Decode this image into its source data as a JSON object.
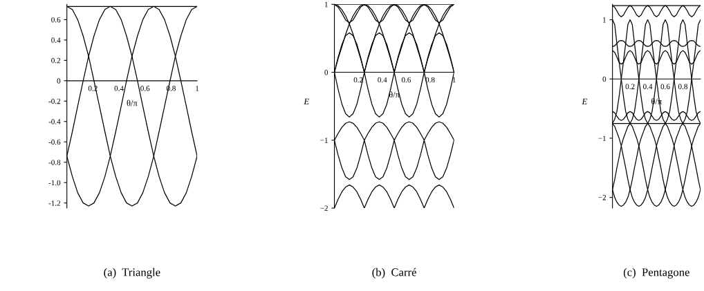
{
  "chart_data": [
    {
      "type": "line",
      "title": "(a)  Triangle",
      "xlabel": "θ/π",
      "xlim": [
        0,
        1
      ],
      "ylim": [
        -1.25,
        0.75
      ],
      "xticks": [
        0.2,
        0.4,
        0.6,
        0.8,
        1
      ],
      "yticks": [
        0.6,
        0.4,
        0.2,
        0,
        -0.2,
        -0.4,
        -0.6,
        -0.8,
        {
          "value": -1.0,
          "label": "-1.0"
        },
        -1.2
      ],
      "x": [
        0,
        0.042,
        0.083,
        0.125,
        0.167,
        0.208,
        0.25,
        0.292,
        0.333,
        0.375,
        0.417,
        0.458,
        0.5,
        0.542,
        0.583,
        0.625,
        0.667,
        0.708,
        0.75,
        0.792,
        0.833,
        0.875,
        0.917,
        0.958,
        1
      ],
      "series": [
        {
          "color": "#000000",
          "values": [
            0.73,
            0.7,
            0.6,
            0.44,
            0.24,
            0.0,
            -0.25,
            -0.5,
            -0.74,
            -0.94,
            -1.1,
            -1.2,
            -1.23,
            -1.2,
            -1.1,
            -0.94,
            -0.74,
            -0.5,
            -0.25,
            0.0,
            0.24,
            0.44,
            0.6,
            0.7,
            0.73
          ]
        },
        {
          "color": "#000000",
          "values": [
            -0.74,
            -0.5,
            -0.25,
            0.0,
            0.24,
            0.44,
            0.6,
            0.7,
            0.73,
            0.7,
            0.6,
            0.44,
            0.24,
            0.0,
            -0.25,
            -0.5,
            -0.74,
            -0.94,
            -1.1,
            -1.2,
            -1.23,
            -1.2,
            -1.1,
            -0.94,
            -0.74
          ]
        },
        {
          "color": "#000000",
          "values": [
            -0.74,
            -0.94,
            -1.1,
            -1.2,
            -1.23,
            -1.2,
            -1.1,
            -0.94,
            -0.74,
            -0.5,
            -0.25,
            0.0,
            0.24,
            0.44,
            0.6,
            0.7,
            0.73,
            0.7,
            0.6,
            0.44,
            0.24,
            0.0,
            -0.25,
            -0.5,
            -0.74
          ]
        },
        {
          "color": "#000000",
          "values": [
            0.73,
            0.73,
            0.73,
            0.73,
            0.73,
            0.73,
            0.73,
            0.73,
            0.73,
            0.73,
            0.73,
            0.73,
            0.73,
            0.73,
            0.73,
            0.73,
            0.73,
            0.73,
            0.73,
            0.73,
            0.73,
            0.73,
            0.73,
            0.73,
            0.73
          ]
        }
      ]
    },
    {
      "type": "line",
      "title": "(b)  Carré",
      "xlabel": "θ/π",
      "ylabel": "E",
      "xlim": [
        0,
        1
      ],
      "ylim": [
        -2,
        1
      ],
      "xticks": [
        0.2,
        0.4,
        0.6,
        0.8,
        1
      ],
      "yticks": [
        {
          "value": 1,
          "label": "1"
        },
        {
          "value": 0,
          "label": "0"
        },
        {
          "value": -1,
          "label": "−1"
        },
        {
          "value": -2,
          "label": "−2"
        }
      ],
      "x": [
        0,
        0.031,
        0.063,
        0.094,
        0.125,
        0.156,
        0.188,
        0.219,
        0.25,
        0.281,
        0.313,
        0.344,
        0.375,
        0.406,
        0.438,
        0.469,
        0.5,
        0.531,
        0.563,
        0.594,
        0.625,
        0.656,
        0.688,
        0.719,
        0.75,
        0.781,
        0.813,
        0.844,
        0.875,
        0.906,
        0.938,
        0.969,
        1
      ],
      "series": [
        {
          "color": "#000000",
          "values": [
            1.0,
            0.96,
            0.87,
            0.77,
            0.73,
            0.77,
            0.87,
            0.96,
            1.0,
            0.96,
            0.87,
            0.77,
            0.73,
            0.77,
            0.87,
            0.96,
            1.0,
            0.96,
            0.87,
            0.77,
            0.73,
            0.77,
            0.87,
            0.96,
            1.0,
            0.96,
            0.87,
            0.77,
            0.73,
            0.77,
            0.87,
            0.96,
            1.0
          ]
        },
        {
          "color": "#000000",
          "values": [
            1,
            0.98,
            0.92,
            0.83,
            0.71,
            0.56,
            0.38,
            0.2,
            0,
            0.2,
            0.38,
            0.56,
            0.71,
            0.83,
            0.92,
            0.98,
            1,
            0.98,
            0.92,
            0.83,
            0.71,
            0.56,
            0.38,
            0.2,
            0,
            0.2,
            0.38,
            0.56,
            0.71,
            0.83,
            0.92,
            0.98,
            1
          ]
        },
        {
          "color": "#000000",
          "values": [
            0,
            0.2,
            0.38,
            0.56,
            0.71,
            0.83,
            0.92,
            0.98,
            1,
            0.98,
            0.92,
            0.83,
            0.71,
            0.56,
            0.38,
            0.2,
            0,
            0.2,
            0.38,
            0.56,
            0.71,
            0.83,
            0.92,
            0.98,
            1,
            0.98,
            0.92,
            0.83,
            0.71,
            0.56,
            0.38,
            0.2,
            0
          ]
        },
        {
          "color": "#000000",
          "values": [
            0,
            0.22,
            0.41,
            0.54,
            0.58,
            0.54,
            0.41,
            0.22,
            0,
            0.22,
            0.41,
            0.54,
            0.58,
            0.54,
            0.41,
            0.22,
            0,
            0.22,
            0.41,
            0.54,
            0.58,
            0.54,
            0.41,
            0.22,
            0,
            0.22,
            0.41,
            0.54,
            0.58,
            0.54,
            0.41,
            0.22,
            0
          ]
        },
        {
          "color": "#000000",
          "values": [
            0,
            -0.25,
            -0.47,
            -0.61,
            -0.66,
            -0.61,
            -0.47,
            -0.25,
            0,
            -0.25,
            -0.47,
            -0.61,
            -0.66,
            -0.61,
            -0.47,
            -0.25,
            0,
            -0.25,
            -0.47,
            -0.61,
            -0.66,
            -0.61,
            -0.47,
            -0.25,
            0,
            -0.25,
            -0.47,
            -0.61,
            -0.66,
            -0.61,
            -0.47,
            -0.25,
            0
          ]
        },
        {
          "color": "#000000",
          "values": [
            -1.0,
            -0.9,
            -0.81,
            -0.75,
            -0.73,
            -0.75,
            -0.81,
            -0.9,
            -1.0,
            -0.9,
            -0.81,
            -0.75,
            -0.73,
            -0.75,
            -0.81,
            -0.9,
            -1.0,
            -0.9,
            -0.81,
            -0.75,
            -0.73,
            -0.75,
            -0.81,
            -0.9,
            -1.0,
            -0.9,
            -0.81,
            -0.75,
            -0.73,
            -0.75,
            -0.81,
            -0.9,
            -1.0
          ]
        },
        {
          "color": "#000000",
          "values": [
            -1.0,
            -1.22,
            -1.41,
            -1.54,
            -1.58,
            -1.54,
            -1.41,
            -1.22,
            -1.0,
            -1.22,
            -1.41,
            -1.54,
            -1.58,
            -1.54,
            -1.41,
            -1.22,
            -1.0,
            -1.22,
            -1.41,
            -1.54,
            -1.58,
            -1.54,
            -1.41,
            -1.22,
            -1.0,
            -1.22,
            -1.41,
            -1.54,
            -1.58,
            -1.54,
            -1.41,
            -1.22,
            -1.0
          ]
        },
        {
          "color": "#000000",
          "values": [
            -2.0,
            -1.87,
            -1.76,
            -1.69,
            -1.66,
            -1.69,
            -1.76,
            -1.87,
            -2.0,
            -1.87,
            -1.76,
            -1.69,
            -1.66,
            -1.69,
            -1.76,
            -1.87,
            -2.0,
            -1.87,
            -1.76,
            -1.69,
            -1.66,
            -1.69,
            -1.76,
            -1.87,
            -2.0,
            -1.87,
            -1.76,
            -1.69,
            -1.66,
            -1.69,
            -1.76,
            -1.87,
            -2.0
          ]
        },
        {
          "color": "#000000",
          "values": [
            1,
            1,
            1,
            1,
            1,
            1,
            1,
            1,
            1,
            1,
            1,
            1,
            1,
            1,
            1,
            1,
            1,
            1,
            1,
            1,
            1,
            1,
            1,
            1,
            1,
            1,
            1,
            1,
            1,
            1,
            1,
            1,
            1
          ]
        }
      ]
    },
    {
      "type": "line",
      "title": "(c)  Pentagone",
      "xlabel": "θ/π",
      "ylabel": "E",
      "xlim": [
        0,
        1
      ],
      "ylim": [
        -2.18,
        1.26
      ],
      "xticks": [
        0.2,
        0.4,
        0.6,
        0.8
      ],
      "yticks": [
        {
          "value": 1,
          "label": "1"
        },
        {
          "value": 0,
          "label": "0"
        },
        {
          "value": -1,
          "label": "−1"
        },
        {
          "value": -2,
          "label": "−2"
        }
      ],
      "x": [
        0,
        0.025,
        0.05,
        0.075,
        0.1,
        0.125,
        0.15,
        0.175,
        0.2,
        0.225,
        0.25,
        0.275,
        0.3,
        0.325,
        0.35,
        0.375,
        0.4,
        0.425,
        0.45,
        0.475,
        0.5,
        0.525,
        0.55,
        0.575,
        0.6,
        0.625,
        0.65,
        0.675,
        0.7,
        0.725,
        0.75,
        0.775,
        0.8,
        0.825,
        0.85,
        0.875,
        0.9,
        0.925,
        0.95,
        0.975,
        1
      ],
      "series": [
        {
          "color": "#000000",
          "values": [
            1.24,
            1.21,
            1.15,
            1.08,
            1.05,
            1.08,
            1.15,
            1.21,
            1.24,
            1.21,
            1.15,
            1.08,
            1.05,
            1.08,
            1.15,
            1.21,
            1.24,
            1.21,
            1.15,
            1.08,
            1.05,
            1.08,
            1.15,
            1.21,
            1.24,
            1.21,
            1.15,
            1.08,
            1.05,
            1.08,
            1.15,
            1.21,
            1.24,
            1.21,
            1.15,
            1.08,
            1.05,
            1.08,
            1.15,
            1.21,
            1.24
          ]
        },
        {
          "color": "#000000",
          "values": [
            0.55,
            0.56,
            0.6,
            0.64,
            0.65,
            0.64,
            0.6,
            0.56,
            0.55,
            0.56,
            0.6,
            0.64,
            0.65,
            0.64,
            0.6,
            0.56,
            0.55,
            0.56,
            0.6,
            0.64,
            0.65,
            0.64,
            0.6,
            0.56,
            0.55,
            0.56,
            0.6,
            0.64,
            0.65,
            0.64,
            0.6,
            0.56,
            0.55,
            0.56,
            0.6,
            0.64,
            0.65,
            0.64,
            0.6,
            0.56,
            0.55
          ]
        },
        {
          "color": "#000000",
          "values": [
            0.48,
            0.45,
            0.37,
            0.28,
            0.25,
            0.28,
            0.37,
            0.45,
            0.48,
            0.45,
            0.37,
            0.28,
            0.25,
            0.28,
            0.37,
            0.45,
            0.48,
            0.45,
            0.37,
            0.28,
            0.25,
            0.28,
            0.37,
            0.45,
            0.48,
            0.45,
            0.37,
            0.28,
            0.25,
            0.28,
            0.37,
            0.45,
            0.48,
            0.45,
            0.37,
            0.28,
            0.25,
            0.28,
            0.37,
            0.45,
            0.48
          ]
        },
        {
          "color": "#000000",
          "values": [
            -0.55,
            -0.57,
            -0.63,
            -0.68,
            -0.7,
            -0.68,
            -0.63,
            -0.57,
            -0.55,
            -0.57,
            -0.63,
            -0.68,
            -0.7,
            -0.68,
            -0.63,
            -0.57,
            -0.55,
            -0.57,
            -0.63,
            -0.68,
            -0.7,
            -0.68,
            -0.63,
            -0.57,
            -0.55,
            -0.57,
            -0.63,
            -0.68,
            -0.7,
            -0.68,
            -0.63,
            -0.57,
            -0.55,
            -0.57,
            -0.63,
            -0.68,
            -0.7,
            -0.68,
            -0.63,
            -0.57,
            -0.55
          ]
        },
        {
          "color": "#000000",
          "values": [
            1.0,
            0.92,
            0.6,
            0.3,
            0.0,
            -0.3,
            -0.55,
            -0.68,
            -0.75,
            -0.8,
            -0.9,
            -1.0,
            -1.13,
            -1.32,
            -1.5,
            -1.7,
            -1.87,
            -2.0,
            -2.08,
            -2.13,
            -2.15,
            -2.13,
            -2.08,
            -2.0,
            -1.87,
            -1.7,
            -1.5,
            -1.32,
            -1.13,
            -1.0,
            -0.9,
            -0.8,
            -0.75,
            -0.68,
            -0.55,
            -0.3,
            0.0,
            0.3,
            0.6,
            0.92,
            1.0
          ]
        },
        {
          "color": "#000000",
          "values": [
            -0.75,
            -0.68,
            -0.55,
            -0.3,
            0.0,
            0.3,
            0.6,
            0.92,
            1.0,
            0.92,
            0.6,
            0.3,
            0.0,
            -0.3,
            -0.55,
            -0.68,
            -0.75,
            -0.8,
            -0.9,
            -1.0,
            -1.13,
            -1.32,
            -1.5,
            -1.7,
            -1.87,
            -2.0,
            -2.08,
            -2.13,
            -2.15,
            -2.13,
            -2.08,
            -2.0,
            -1.87,
            -1.7,
            -1.5,
            -1.32,
            -1.13,
            -1.0,
            -0.9,
            -0.8,
            -0.75
          ]
        },
        {
          "color": "#000000",
          "values": [
            -1.87,
            -1.7,
            -1.5,
            -1.32,
            -1.13,
            -1.0,
            -0.9,
            -0.8,
            -0.75,
            -0.68,
            -0.55,
            -0.3,
            0.0,
            0.3,
            0.6,
            0.92,
            1.0,
            0.92,
            0.6,
            0.3,
            0.0,
            -0.3,
            -0.55,
            -0.68,
            -0.75,
            -0.8,
            -0.9,
            -1.0,
            -1.13,
            -1.32,
            -1.5,
            -1.7,
            -1.87,
            -2.0,
            -2.08,
            -2.13,
            -2.15,
            -2.13,
            -2.08,
            -2.0,
            -1.87
          ]
        },
        {
          "color": "#000000",
          "values": [
            -1.87,
            -2.0,
            -2.08,
            -2.13,
            -2.15,
            -2.13,
            -2.08,
            -2.0,
            -1.87,
            -1.7,
            -1.5,
            -1.32,
            -1.13,
            -1.0,
            -0.9,
            -0.8,
            -0.75,
            -0.68,
            -0.55,
            -0.3,
            0.0,
            0.3,
            0.6,
            0.92,
            1.0,
            0.92,
            0.6,
            0.3,
            0.0,
            -0.3,
            -0.55,
            -0.68,
            -0.75,
            -0.8,
            -0.9,
            -1.0,
            -1.13,
            -1.32,
            -1.5,
            -1.7,
            -1.87
          ]
        },
        {
          "color": "#000000",
          "values": [
            -0.75,
            -0.8,
            -0.9,
            -1.0,
            -1.13,
            -1.32,
            -1.5,
            -1.7,
            -1.87,
            -2.0,
            -2.08,
            -2.13,
            -2.15,
            -2.13,
            -2.08,
            -2.0,
            -1.87,
            -1.7,
            -1.5,
            -1.32,
            -1.13,
            -1.0,
            -0.9,
            -0.8,
            -0.75,
            -0.68,
            -0.55,
            -0.3,
            0.0,
            0.3,
            0.6,
            0.92,
            1.0,
            0.92,
            0.6,
            0.3,
            0.0,
            -0.3,
            -0.55,
            -0.68,
            -0.75
          ]
        },
        {
          "color": "#000000",
          "values": [
            1.24,
            1.24,
            1.24,
            1.24,
            1.24,
            1.24,
            1.24,
            1.24,
            1.24,
            1.24,
            1.24,
            1.24,
            1.24,
            1.24,
            1.24,
            1.24,
            1.24,
            1.24,
            1.24,
            1.24,
            1.24,
            1.24,
            1.24,
            1.24,
            1.24,
            1.24,
            1.24,
            1.24,
            1.24,
            1.24,
            1.24,
            1.24,
            1.24,
            1.24,
            1.24,
            1.24,
            1.24,
            1.24,
            1.24,
            1.24,
            1.24
          ]
        },
        {
          "color": "#000000",
          "values": [
            -0.75,
            -0.75,
            -0.75,
            -0.75,
            -0.75,
            -0.75,
            -0.75,
            -0.75,
            -0.75,
            -0.75,
            -0.75,
            -0.75,
            -0.75,
            -0.75,
            -0.75,
            -0.75,
            -0.75,
            -0.75,
            -0.75,
            -0.75,
            -0.75,
            -0.75,
            -0.75,
            -0.75,
            -0.75,
            -0.75,
            -0.75,
            -0.75,
            -0.75,
            -0.75,
            -0.75,
            -0.75,
            -0.75,
            -0.75,
            -0.75,
            -0.75,
            -0.75,
            -0.75,
            -0.75,
            -0.75,
            -0.75
          ]
        }
      ]
    }
  ]
}
